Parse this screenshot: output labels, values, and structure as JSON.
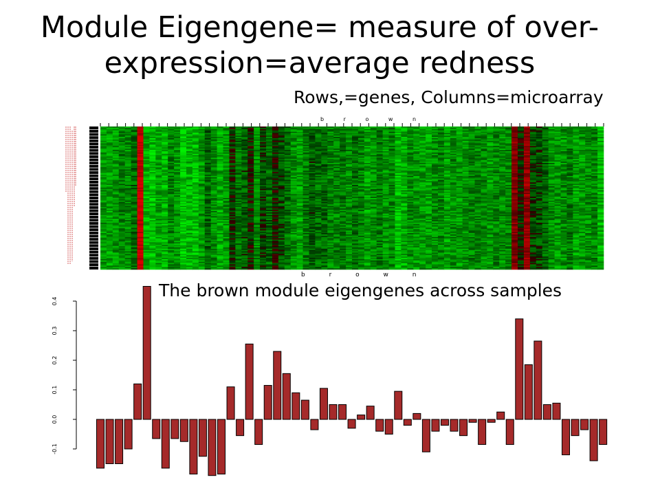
{
  "slide": {
    "title_line1": "Module Eigengene= measure of over-",
    "title_line2": "expression=average redness",
    "subtitle": "Rows,=genes, Columns=microarray"
  },
  "heatmap": {
    "label_top": "b r o w n",
    "label_bottom": "b r o w n",
    "colors": {
      "green": "#00d800",
      "black": "#000000",
      "red": "#c01010",
      "gene_tick": "#cc3333"
    },
    "column_levels": [
      0.55,
      0.6,
      0.55,
      0.45,
      0.5,
      0.3,
      -0.9,
      0.7,
      0.75,
      0.6,
      0.7,
      0.45,
      0.55,
      0.8,
      0.7,
      0.75,
      0.55,
      0.3,
      0.5,
      0.65,
      0.55,
      0.05,
      0.35,
      0.25,
      0.0,
      0.5,
      0.15,
      0.3,
      0.0,
      0.2,
      0.35,
      0.5,
      0.6,
      0.4,
      0.25,
      0.35,
      0.3,
      0.45,
      0.45,
      0.4,
      0.5,
      0.35,
      0.45,
      0.6,
      0.5,
      0.4,
      0.55,
      0.45,
      0.75,
      0.65,
      0.5,
      0.55,
      0.55,
      0.6,
      0.5,
      0.45,
      0.6,
      0.5,
      0.55,
      0.55,
      0.45,
      0.45,
      0.5,
      0.55,
      0.45,
      0.5,
      0.45,
      -0.5,
      0.0,
      -0.6,
      0.15,
      0.2,
      0.3,
      0.5,
      0.55,
      0.5,
      0.4,
      0.6,
      0.55,
      0.5,
      0.45,
      0.7
    ]
  },
  "chart_data": {
    "type": "bar",
    "title": "The brown module eigengenes across samples",
    "ylim": [
      -0.2,
      0.45
    ],
    "yticks": [
      -0.1,
      0.0,
      0.1,
      0.2,
      0.3,
      0.4
    ],
    "ytick_labels": [
      "-0.1",
      "0.0",
      "0.1",
      "0.2",
      "0.3",
      "0.4"
    ],
    "bar_color": "#a52a2a",
    "values": [
      -0.165,
      -0.15,
      -0.15,
      -0.1,
      0.12,
      0.45,
      -0.065,
      -0.165,
      -0.065,
      -0.075,
      -0.185,
      -0.125,
      -0.19,
      -0.185,
      0.11,
      -0.055,
      0.255,
      -0.085,
      0.115,
      0.23,
      0.155,
      0.09,
      0.065,
      -0.035,
      0.105,
      0.05,
      0.05,
      -0.03,
      0.015,
      0.045,
      -0.04,
      -0.05,
      0.095,
      -0.02,
      0.02,
      -0.11,
      -0.04,
      -0.02,
      -0.04,
      -0.055,
      -0.01,
      -0.085,
      -0.01,
      0.025,
      -0.085,
      0.34,
      0.185,
      0.265,
      0.05,
      0.055,
      -0.12,
      -0.055,
      -0.035,
      -0.14,
      -0.085
    ]
  }
}
